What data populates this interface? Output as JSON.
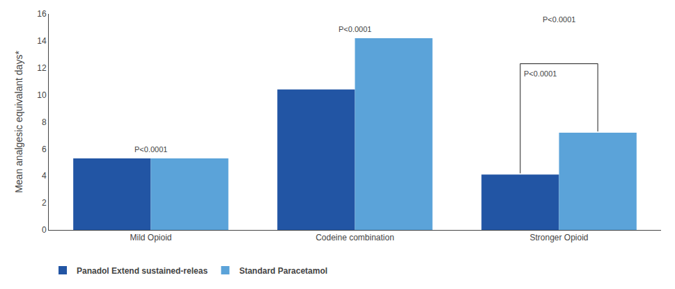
{
  "chart_data": {
    "type": "bar",
    "categories": [
      "Mild Opioid",
      "Codeine combination",
      "Stronger Opioid"
    ],
    "series": [
      {
        "name": "Panadol Extend sustained-releas",
        "color": "#2255a4",
        "values": [
          5.3,
          10.4,
          4.1
        ]
      },
      {
        "name": "Standard Paracetamol",
        "color": "#5ba3d9",
        "values": [
          5.3,
          14.2,
          7.2
        ]
      }
    ],
    "ylabel": "Mean analgesic equivalant days*",
    "ylim": [
      0,
      16
    ],
    "yticks": [
      0,
      2,
      4,
      6,
      8,
      10,
      12,
      14,
      16
    ],
    "grid": false,
    "legend": "bottom",
    "annotations": [
      {
        "text": "P<0.0001",
        "category": "Mild Opioid"
      },
      {
        "text": "P<0.0001",
        "category": "Codeine combination"
      },
      {
        "text": "P<0.0001",
        "category": "Stronger Opioid"
      },
      {
        "text": "P<0.0001",
        "category": "Stronger Opioid",
        "bracket": true
      }
    ]
  }
}
